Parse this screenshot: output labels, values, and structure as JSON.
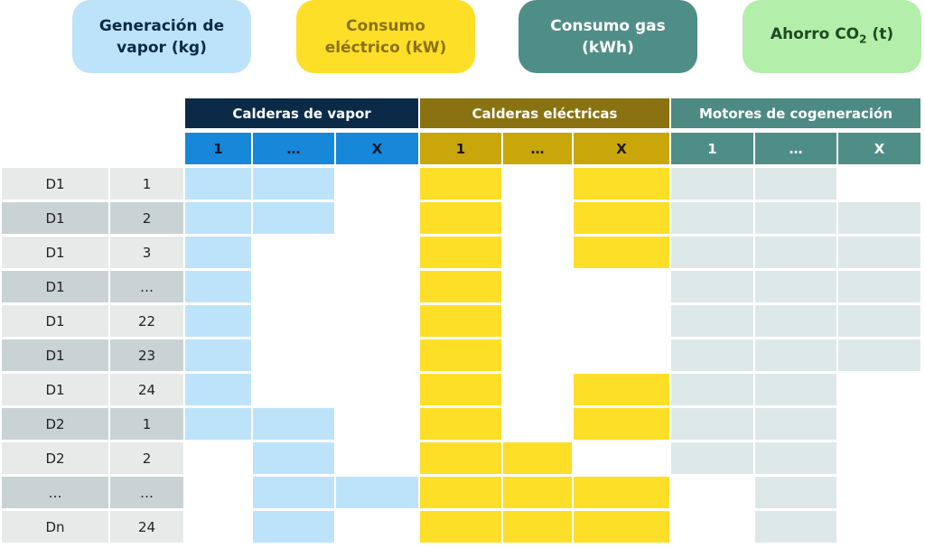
{
  "colors": {
    "steam_light": "#bde3fb",
    "steam_dark": "#1787d9",
    "steam_header": "#0a2a48",
    "elec_light": "#fddf28",
    "elec_dark": "#c9a70a",
    "elec_header": "#8a7210",
    "gas_light": "#dde9e8",
    "gas_dark": "#4f8e86",
    "gas_header": "#4e8a84",
    "co2_light": "#b4eeab",
    "row_odd": "#e8eaea",
    "row_even": "#c9d3d3"
  },
  "legend": [
    {
      "id": "steam",
      "label": "Generación de\nvapor (kg)"
    },
    {
      "id": "electric",
      "label": "Consumo\neléctrico (kW)"
    },
    {
      "id": "gas",
      "label": "Consumo gas\n(kWh)"
    },
    {
      "id": "co2",
      "label_prefix": "Ahorro CO",
      "label_sub": "2",
      "label_suffix": " (t)"
    }
  ],
  "groups": [
    {
      "id": "steam",
      "title": "Calderas de vapor",
      "units": [
        "1",
        "…",
        "X"
      ]
    },
    {
      "id": "electric",
      "title": "Calderas eléctricas",
      "units": [
        "1",
        "…",
        "X"
      ]
    },
    {
      "id": "gas",
      "title": "Motores de cogeneración",
      "units": [
        "1",
        "…",
        "X"
      ]
    }
  ],
  "rows": [
    {
      "day": "D1",
      "hour": "1",
      "cells": [
        "11",
        "101",
        "110"
      ]
    },
    {
      "day": "D1",
      "hour": "2",
      "cells": [
        "11",
        "101",
        "111"
      ]
    },
    {
      "day": "D1",
      "hour": "3",
      "cells": [
        "10",
        "101",
        "111"
      ]
    },
    {
      "day": "D1",
      "hour": "…",
      "cells": [
        "10",
        "100",
        "111"
      ]
    },
    {
      "day": "D1",
      "hour": "22",
      "cells": [
        "10",
        "100",
        "111"
      ]
    },
    {
      "day": "D1",
      "hour": "23",
      "cells": [
        "10",
        "100",
        "111"
      ]
    },
    {
      "day": "D1",
      "hour": "24",
      "cells": [
        "10",
        "101",
        "110"
      ]
    },
    {
      "day": "D2",
      "hour": "1",
      "cells": [
        "11",
        "101",
        "110"
      ]
    },
    {
      "day": "D2",
      "hour": "2",
      "cells": [
        "01",
        "110",
        "110"
      ]
    },
    {
      "day": "…",
      "hour": "…",
      "cells": [
        "011",
        "111",
        "010"
      ]
    },
    {
      "day": "Dn",
      "hour": "24",
      "cells": [
        "01",
        "111",
        "010"
      ]
    }
  ]
}
